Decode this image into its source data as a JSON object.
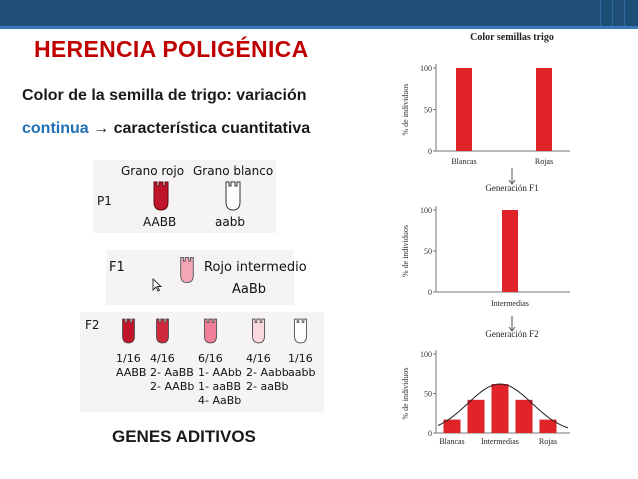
{
  "slide": {
    "title": "HERENCIA POLIGÉNICA",
    "subtitle": "Color de la semilla de trigo: variación",
    "subtitle2_accent": "continua",
    "subtitle2_rest": " → característica cuantitativa",
    "footer": "GENES ADITIVOS"
  },
  "diagram": {
    "p1": {
      "label": "P1",
      "red_label": "Grano rojo",
      "white_label": "Grano blanco",
      "red_genotype": "AABB",
      "white_genotype": "aabb"
    },
    "f1": {
      "label": "F1",
      "phenotype": "Rojo intermedio",
      "genotype": "AaBb"
    },
    "f2": {
      "label": "F2",
      "groups": [
        {
          "fraction": "1/16",
          "line1": "AABB",
          "line2": "",
          "line3": "",
          "color": "#c0142a"
        },
        {
          "fraction": "4/16",
          "line1": "2- AaBB",
          "line2": "2- AABb",
          "line3": "",
          "color": "#cf2a3c"
        },
        {
          "fraction": "6/16",
          "line1": "1- AAbb",
          "line2": "1- aaBB",
          "line3": "4- AaBb",
          "color": "#f07f9a"
        },
        {
          "fraction": "4/16",
          "line1": "2- Aabb",
          "line2": "2- aaBb",
          "line3": "",
          "color": "#fbd8e0"
        },
        {
          "fraction": "1/16",
          "line1": "aabb",
          "line2": "",
          "line3": "",
          "color": "#ffffff"
        }
      ]
    },
    "colors": {
      "red_grain": "#c0142a",
      "pink_grain": "#f4a6b8",
      "white_grain": "#ffffff"
    }
  },
  "chart_data": [
    {
      "type": "bar",
      "title": "Color semillas trigo",
      "ylabel": "% de individuos",
      "ylim": [
        0,
        100
      ],
      "yticks": [
        "0",
        "50",
        "100"
      ],
      "categories": [
        "Blancas",
        "Rojas"
      ],
      "values": [
        100,
        100
      ],
      "color": "#e0242a"
    },
    {
      "type": "bar",
      "title": "Generación F1",
      "ylabel": "% de individuos",
      "ylim": [
        0,
        100
      ],
      "yticks": [
        "0",
        "50",
        "100"
      ],
      "categories": [
        "Intermedias"
      ],
      "values": [
        100
      ],
      "color": "#e0242a"
    },
    {
      "type": "bar",
      "title": "Generación F2",
      "ylabel": "% de individuos",
      "ylim": [
        0,
        100
      ],
      "yticks": [
        "0",
        "50",
        "100"
      ],
      "categories": [
        "Blancas",
        "",
        "Intermedias",
        "",
        "Rojas"
      ],
      "values": [
        17,
        42,
        62,
        42,
        17
      ],
      "curve": true,
      "color": "#e0242a"
    }
  ]
}
